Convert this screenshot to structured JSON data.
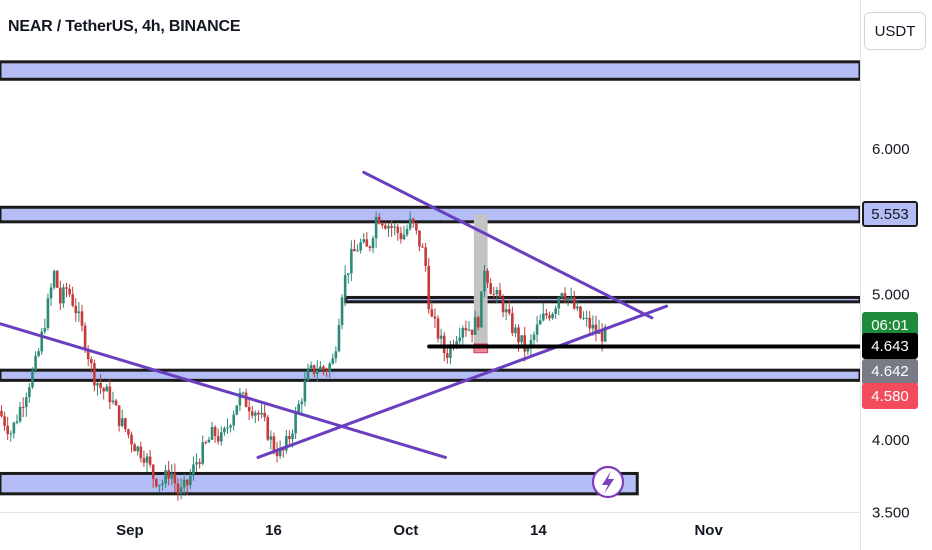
{
  "legend": {
    "title": "NEAR / TetherUS, 4h, BINANCE"
  },
  "currency_button": {
    "label": "USDT"
  },
  "colors": {
    "zone_fill": "#b4bdf5",
    "zone_border": "#1b1b1b",
    "trendline": "#6a3fbf",
    "up_candle": "#2e8a78",
    "down_candle": "#c63a3a",
    "grey_bar": "#c3c3c3",
    "pink_marker": "#f08a9a",
    "countdown_bg": "#1e8b3a",
    "last_price_bg": "#000000",
    "zone_price_bg": "#787b86",
    "low_price_bg": "#f24b5a"
  },
  "price_tags": [
    {
      "name": "price-tag-zone-top",
      "label": "5.553",
      "price": 5.553,
      "bg": "#b4bdf5",
      "fg": "#131722",
      "border": "#1b1b1b"
    },
    {
      "name": "price-tag-countdown",
      "label": "06:01",
      "price": 4.79,
      "bg": "#1e8b3a",
      "fg": "#ffffff",
      "border": "#1e8b3a"
    },
    {
      "name": "price-tag-last",
      "label": "4.643",
      "price": 4.643,
      "bg": "#000000",
      "fg": "#ffffff",
      "border": "#000000"
    },
    {
      "name": "price-tag-zone-mid",
      "label": "4.642",
      "price": 4.47,
      "bg": "#787b86",
      "fg": "#ffffff",
      "border": "#787b86"
    },
    {
      "name": "price-tag-low",
      "label": "4.580",
      "price": 4.3,
      "bg": "#f24b5a",
      "fg": "#ffffff",
      "border": "#f24b5a"
    }
  ],
  "chart_data": {
    "type": "candlestick",
    "title": "NEAR / TetherUS, 4h, BINANCE",
    "ylim": [
      3.45,
      6.75
    ],
    "y_ticks": [
      {
        "value": 6.0,
        "label": "6.000"
      },
      {
        "value": 5.0,
        "label": "5.000"
      },
      {
        "value": 4.0,
        "label": "4.000"
      },
      {
        "value": 3.5,
        "label": "3.500"
      }
    ],
    "x_ticks": [
      {
        "x": 0.151,
        "label": "Sep"
      },
      {
        "x": 0.318,
        "label": "16"
      },
      {
        "x": 0.472,
        "label": "Oct"
      },
      {
        "x": 0.626,
        "label": "14"
      },
      {
        "x": 0.824,
        "label": "Nov"
      }
    ],
    "series_points": [
      [
        0.0,
        4.2
      ],
      [
        0.015,
        4.05
      ],
      [
        0.03,
        4.3
      ],
      [
        0.045,
        4.55
      ],
      [
        0.055,
        4.85
      ],
      [
        0.065,
        5.15
      ],
      [
        0.072,
        4.95
      ],
      [
        0.08,
        5.05
      ],
      [
        0.09,
        4.9
      ],
      [
        0.1,
        4.7
      ],
      [
        0.11,
        4.45
      ],
      [
        0.12,
        4.35
      ],
      [
        0.13,
        4.3
      ],
      [
        0.14,
        4.15
      ],
      [
        0.15,
        4.05
      ],
      [
        0.16,
        3.95
      ],
      [
        0.17,
        3.9
      ],
      [
        0.18,
        3.75
      ],
      [
        0.19,
        3.7
      ],
      [
        0.2,
        3.8
      ],
      [
        0.21,
        3.62
      ],
      [
        0.22,
        3.7
      ],
      [
        0.23,
        3.85
      ],
      [
        0.24,
        3.95
      ],
      [
        0.25,
        4.05
      ],
      [
        0.26,
        4.0
      ],
      [
        0.27,
        4.15
      ],
      [
        0.28,
        4.3
      ],
      [
        0.29,
        4.25
      ],
      [
        0.3,
        4.2
      ],
      [
        0.31,
        4.1
      ],
      [
        0.32,
        3.95
      ],
      [
        0.33,
        3.9
      ],
      [
        0.34,
        4.05
      ],
      [
        0.35,
        4.25
      ],
      [
        0.36,
        4.45
      ],
      [
        0.37,
        4.5
      ],
      [
        0.38,
        4.48
      ],
      [
        0.39,
        4.55
      ],
      [
        0.4,
        5.05
      ],
      [
        0.41,
        5.25
      ],
      [
        0.42,
        5.35
      ],
      [
        0.43,
        5.3
      ],
      [
        0.44,
        5.55
      ],
      [
        0.45,
        5.5
      ],
      [
        0.46,
        5.45
      ],
      [
        0.47,
        5.4
      ],
      [
        0.48,
        5.5
      ],
      [
        0.49,
        5.35
      ],
      [
        0.496,
        5.25
      ],
      [
        0.502,
        4.85
      ],
      [
        0.51,
        4.75
      ],
      [
        0.52,
        4.58
      ],
      [
        0.53,
        4.7
      ],
      [
        0.54,
        4.8
      ],
      [
        0.55,
        4.76
      ],
      [
        0.56,
        4.85
      ],
      [
        0.565,
        5.2
      ],
      [
        0.575,
        5.0
      ],
      [
        0.585,
        4.95
      ],
      [
        0.595,
        4.8
      ],
      [
        0.605,
        4.7
      ],
      [
        0.615,
        4.6
      ],
      [
        0.625,
        4.75
      ],
      [
        0.635,
        4.85
      ],
      [
        0.645,
        4.9
      ],
      [
        0.655,
        5.05
      ],
      [
        0.665,
        4.95
      ],
      [
        0.675,
        4.85
      ],
      [
        0.685,
        4.8
      ],
      [
        0.695,
        4.74
      ],
      [
        0.705,
        4.72
      ]
    ],
    "zones": [
      {
        "name": "zone-top",
        "x0": 0.0,
        "x1": 1.0,
        "y_top": 6.6,
        "y_bottom": 6.48
      },
      {
        "name": "zone-resistance",
        "x0": 0.0,
        "x1": 1.0,
        "y_top": 5.6,
        "y_bottom": 5.5
      },
      {
        "name": "zone-mid",
        "x0": 0.402,
        "x1": 1.0,
        "y_top": 4.98,
        "y_bottom": 4.95
      },
      {
        "name": "zone-support",
        "x0": 0.0,
        "x1": 1.0,
        "y_top": 4.48,
        "y_bottom": 4.41
      },
      {
        "name": "zone-bottom",
        "x0": 0.0,
        "x1": 0.741,
        "y_top": 3.77,
        "y_bottom": 3.63
      }
    ],
    "lines": [
      {
        "name": "trendline-falling-long",
        "x0": 0.0,
        "y0": 4.8,
        "x1": 0.518,
        "y1": 3.88,
        "color": "#6a3fbf",
        "width": 3
      },
      {
        "name": "trendline-rising",
        "x0": 0.3,
        "y0": 3.88,
        "x1": 0.775,
        "y1": 4.92,
        "color": "#6a3fbf",
        "width": 3
      },
      {
        "name": "trendline-falling-short",
        "x0": 0.423,
        "y0": 5.84,
        "x1": 0.758,
        "y1": 4.84,
        "color": "#6a3fbf",
        "width": 3
      },
      {
        "name": "horizontal-black",
        "x0": 0.499,
        "y0": 4.643,
        "x1": 1.0,
        "y1": 4.643,
        "color": "#000000",
        "width": 4
      }
    ],
    "grey_bar": {
      "x0": 0.551,
      "x1": 0.567,
      "y_top": 5.55,
      "y_bottom": 4.66
    },
    "pink_marker": {
      "x0": 0.551,
      "x1": 0.567,
      "y_top": 4.66,
      "y_bottom": 4.6
    }
  }
}
